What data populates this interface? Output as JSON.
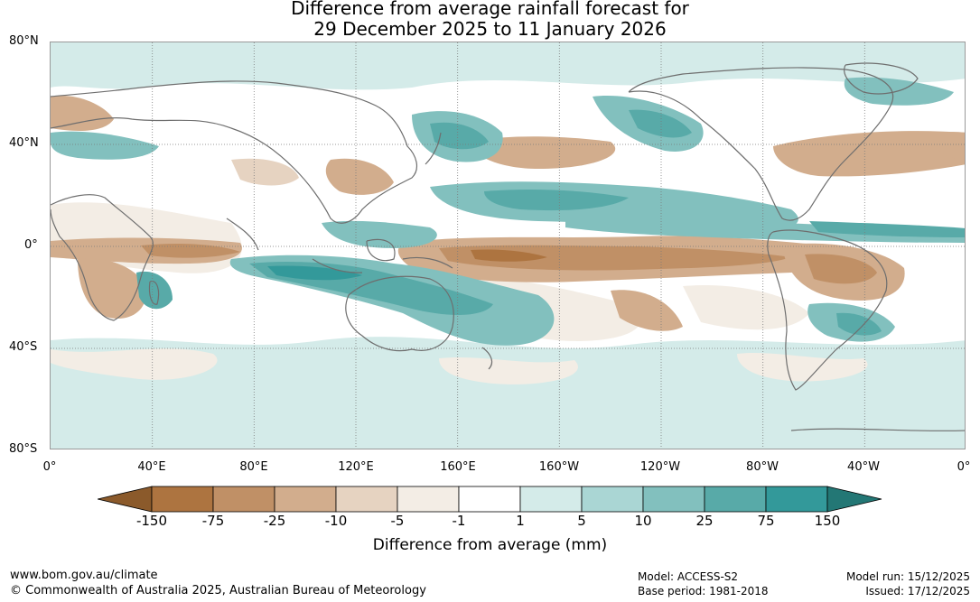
{
  "title": {
    "line1": "Difference from average rainfall forecast for",
    "line2": "29 December 2025 to 11 January 2026"
  },
  "latitude_labels": [
    "80°N",
    "40°N",
    "0°",
    "40°S",
    "80°S"
  ],
  "longitude_labels": [
    "0°",
    "40°E",
    "80°E",
    "120°E",
    "160°E",
    "160°W",
    "120°W",
    "80°W",
    "40°W",
    "0°"
  ],
  "colorbar": {
    "title": "Difference from average (mm)",
    "tick_labels": [
      "-150",
      "-75",
      "-25",
      "-10",
      "-5",
      "-1",
      "1",
      "5",
      "10",
      "25",
      "75",
      "150"
    ],
    "colors": [
      "#8b5a2b",
      "#ad7440",
      "#c09066",
      "#d2ad8d",
      "#e6d3c1",
      "#f3ede5",
      "#ffffff",
      "#d4ebe9",
      "#aad6d4",
      "#82c0be",
      "#58aaa8",
      "#33999a",
      "#237775"
    ]
  },
  "footer": {
    "website": "www.bom.gov.au/climate",
    "copyright": "© Commonwealth of Australia 2025, Australian Bureau of Meteorology",
    "model": "Model: ACCESS-S2",
    "base_period": "Base period: 1981-2018",
    "model_run": "Model run: 15/12/2025",
    "issued": "Issued: 17/12/2025"
  }
}
